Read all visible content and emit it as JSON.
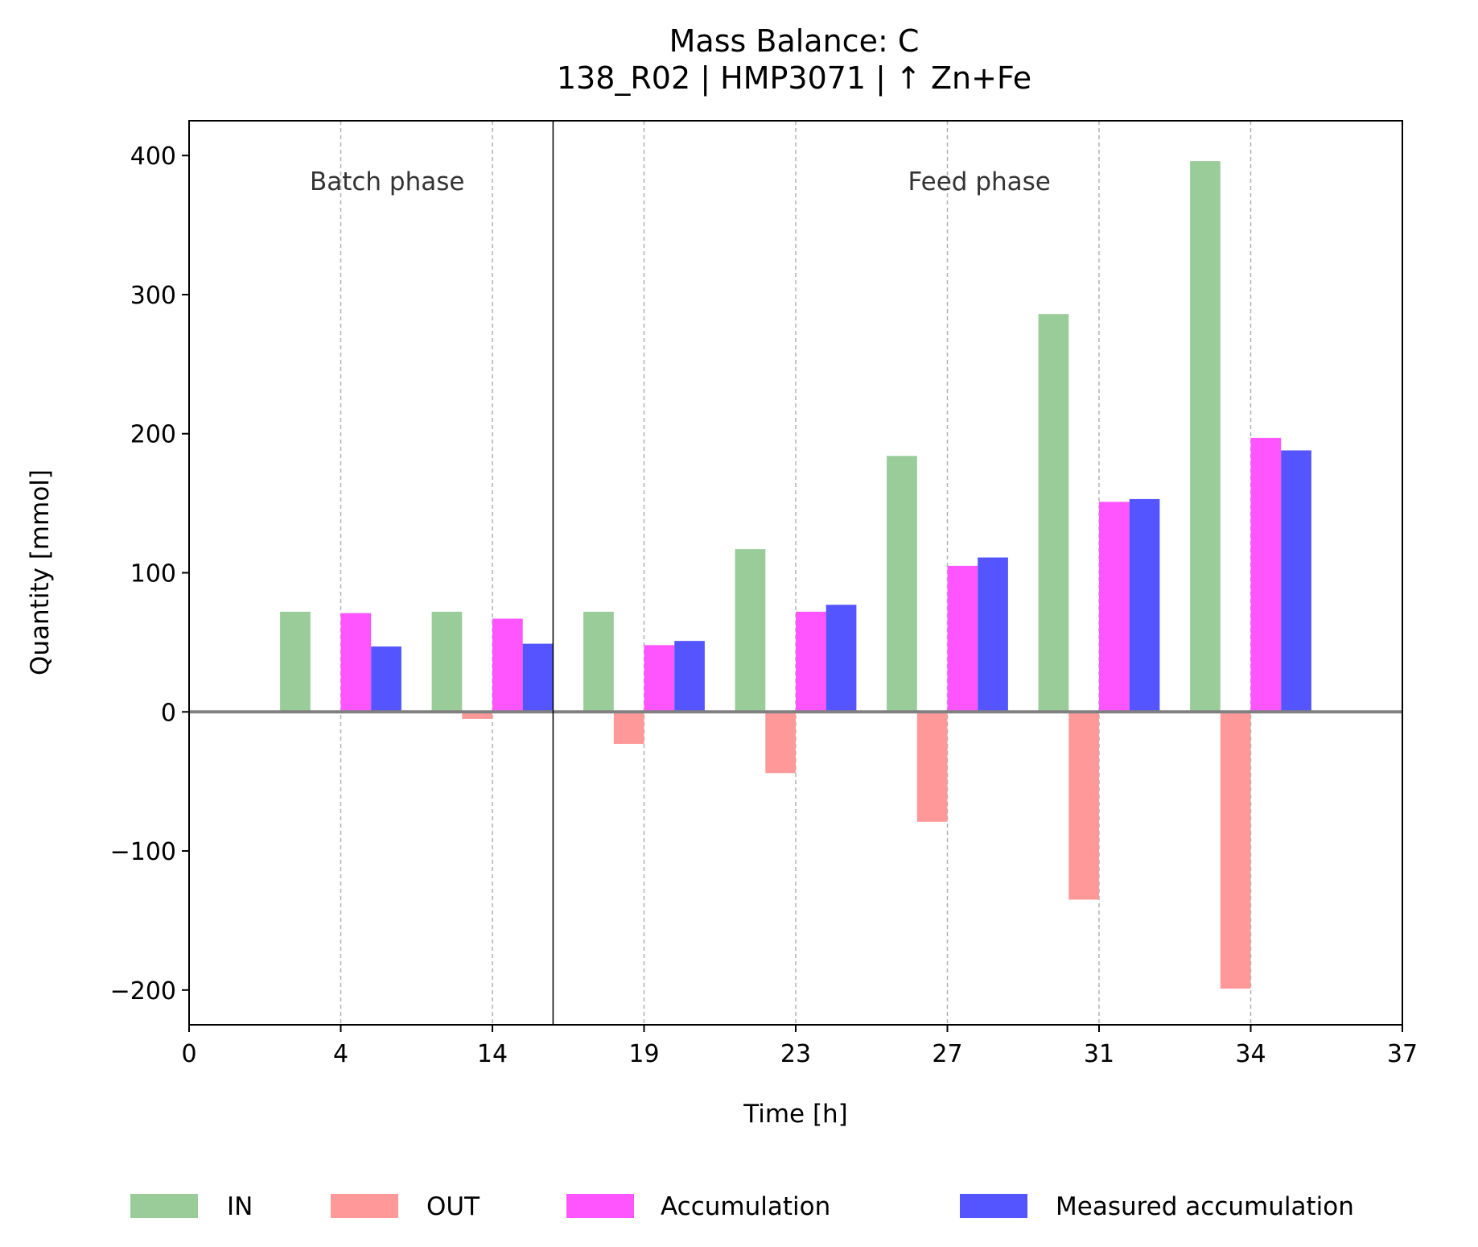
{
  "chart_data": {
    "type": "bar",
    "title": "Mass Balance: C",
    "subtitle": "138_R02  |  HMP3071  |  ↑ Zn+Fe",
    "xlabel": "Time [h]",
    "ylabel": "Quantity [mmol]",
    "ylim": [
      -225,
      425
    ],
    "yticks": [
      400,
      300,
      200,
      100,
      0,
      -100,
      -200
    ],
    "ytick_labels": [
      "400",
      "300",
      "200",
      "100",
      "0",
      "−100",
      "−200"
    ],
    "xlim": [
      0,
      8
    ],
    "xtick_labels": [
      "0",
      "4",
      "14",
      "19",
      "23",
      "27",
      "31",
      "34",
      "37"
    ],
    "categories": [
      "4",
      "14",
      "19",
      "23",
      "27",
      "31",
      "34"
    ],
    "phases": [
      {
        "label": "Batch phase"
      },
      {
        "label": "Feed phase"
      }
    ],
    "phase_boundary_x": 2.4,
    "grid": "vertical dashed at ticks",
    "legend": "bottom, outside, 4 columns",
    "series": [
      {
        "name": "IN",
        "color": "#99cc99",
        "values": [
          72,
          72,
          72,
          117,
          184,
          286,
          396
        ]
      },
      {
        "name": "OUT",
        "color": "#ff9999",
        "values": [
          -1,
          -5,
          -23,
          -44,
          -79,
          -135,
          -199
        ]
      },
      {
        "name": "Accumulation",
        "color": "#ff55ff",
        "values": [
          71,
          67,
          48,
          72,
          105,
          151,
          197
        ]
      },
      {
        "name": "Measured accumulation",
        "color": "#5555ff",
        "values": [
          47,
          49,
          51,
          77,
          111,
          153,
          188
        ]
      }
    ]
  }
}
